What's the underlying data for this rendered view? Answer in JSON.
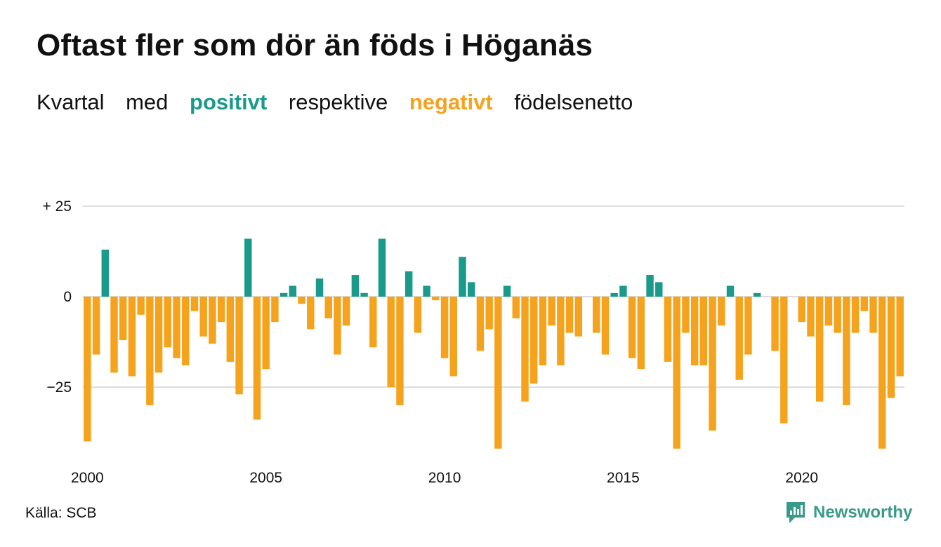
{
  "title": "Oftast fler som dör än föds i Höganäs",
  "subtitle": {
    "part1": "Kvartal",
    "part2": "med",
    "positive_word": "positivt",
    "part3": "respektive",
    "negative_word": "negativt",
    "part4": "födelsenetto"
  },
  "source": "Källa: SCB",
  "logo": {
    "text": "Newsworthy",
    "icon": "newsworthy-logo-icon"
  },
  "colors": {
    "positive": "#1a9a8a",
    "negative": "#f5a21c",
    "grid": "#dddddd"
  },
  "chart_data": {
    "type": "bar",
    "x_start": {
      "year": 2000,
      "quarter": 1
    },
    "values": [
      -40,
      -16,
      13,
      -21,
      -12,
      -22,
      -5,
      -30,
      -21,
      -14,
      -17,
      -19,
      -4,
      -11,
      -13,
      -7,
      -18,
      -27,
      16,
      -34,
      -20,
      -7,
      1,
      3,
      -2,
      -9,
      5,
      -6,
      -16,
      -8,
      6,
      1,
      -14,
      16,
      -25,
      -30,
      7,
      -10,
      3,
      -1,
      -17,
      -22,
      11,
      4,
      -15,
      -9,
      -42,
      3,
      -6,
      -29,
      -24,
      -19,
      -8,
      -19,
      -10,
      -11,
      0,
      -10,
      -16,
      1,
      3,
      -17,
      -20,
      6,
      4,
      -18,
      -42,
      -10,
      -19,
      -19,
      -37,
      -8,
      3,
      -23,
      -16,
      1,
      0,
      -15,
      -35,
      0,
      -7,
      -11,
      -29,
      -8,
      -10,
      -30,
      -10,
      -4,
      -10,
      -42,
      -28,
      -22
    ],
    "ylim": [
      -45,
      25
    ],
    "y_ticks": [
      {
        "value": 25,
        "label": "+ 25"
      },
      {
        "value": 0,
        "label": "0"
      },
      {
        "value": -25,
        "label": "−25"
      }
    ],
    "x_ticks": [
      {
        "year": 2000,
        "label": "2000"
      },
      {
        "year": 2005,
        "label": "2005"
      },
      {
        "year": 2010,
        "label": "2010"
      },
      {
        "year": 2015,
        "label": "2015"
      },
      {
        "year": 2020,
        "label": "2020"
      }
    ],
    "grid": true,
    "legend": "none"
  }
}
